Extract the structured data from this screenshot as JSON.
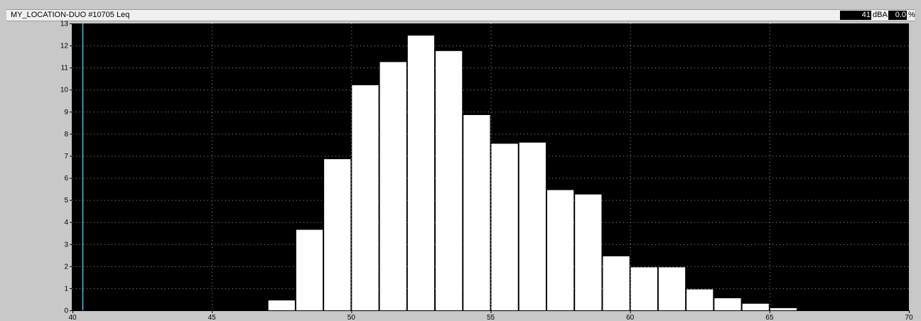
{
  "header": {
    "title": "MY_LOCATION-DUO #10705  Leq",
    "level_value": "41",
    "level_unit": "dBA",
    "percent_value": "0.0",
    "percent_unit": "%"
  },
  "colors": {
    "plot_background": "#000000",
    "bar_fill": "#ffffff",
    "cursor_line": "#3fc7d6",
    "grid": "#9a9a9a"
  },
  "chart_data": {
    "type": "bar",
    "title": "",
    "xlabel": "",
    "ylabel": "",
    "xlim": [
      40,
      70
    ],
    "ylim": [
      0,
      13
    ],
    "x_ticks": [
      "40",
      "45",
      "50",
      "55",
      "60",
      "65",
      "70"
    ],
    "y_ticks": [
      "0",
      "1",
      "2",
      "3",
      "4",
      "5",
      "6",
      "7",
      "8",
      "9",
      "10",
      "11",
      "12",
      "13"
    ],
    "grid": true,
    "bin_width": 1,
    "cursor_x": 40.35,
    "bins": [
      {
        "x": 47,
        "value": 0.45
      },
      {
        "x": 48,
        "value": 3.65
      },
      {
        "x": 49,
        "value": 6.85
      },
      {
        "x": 50,
        "value": 10.2
      },
      {
        "x": 51,
        "value": 11.25
      },
      {
        "x": 52,
        "value": 12.45
      },
      {
        "x": 53,
        "value": 11.75
      },
      {
        "x": 54,
        "value": 8.85
      },
      {
        "x": 55,
        "value": 7.55
      },
      {
        "x": 56,
        "value": 7.6
      },
      {
        "x": 57,
        "value": 5.45
      },
      {
        "x": 58,
        "value": 5.25
      },
      {
        "x": 59,
        "value": 2.45
      },
      {
        "x": 60,
        "value": 1.95
      },
      {
        "x": 61,
        "value": 1.95
      },
      {
        "x": 62,
        "value": 0.95
      },
      {
        "x": 63,
        "value": 0.55
      },
      {
        "x": 64,
        "value": 0.3
      },
      {
        "x": 65,
        "value": 0.1
      }
    ]
  }
}
